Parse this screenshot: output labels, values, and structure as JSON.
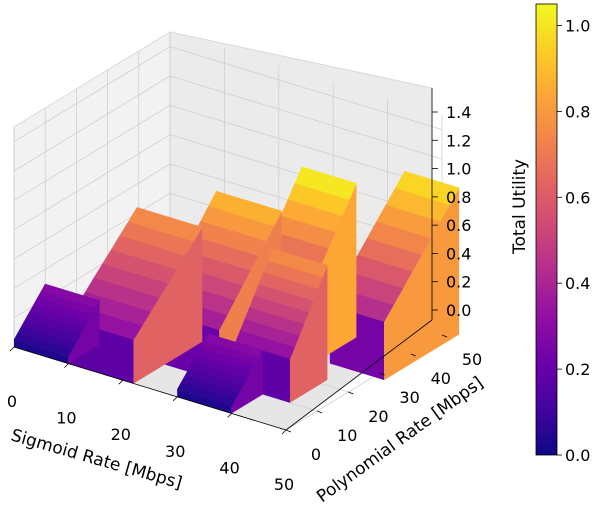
{
  "chart_data": {
    "type": "surface3d",
    "title": "",
    "xlabel": "Sigmoid Rate [Mbps]",
    "ylabel": "Polynomial Rate [Mbps]",
    "zlabel": "Total Utility",
    "xticks": [
      "0",
      "10",
      "20",
      "30",
      "40",
      "50"
    ],
    "yticks": [
      "0",
      "10",
      "20",
      "30",
      "40",
      "50"
    ],
    "zticks": [
      "0.0",
      "0.2",
      "0.4",
      "0.6",
      "0.8",
      "1.0",
      "1.2",
      "1.4"
    ],
    "colorbar_ticks": [
      "0.0",
      "0.2",
      "0.4",
      "0.6",
      "0.8",
      "1.0"
    ],
    "xlim": [
      0,
      50
    ],
    "ylim": [
      0,
      50
    ],
    "zlim": [
      0,
      1.5
    ],
    "colorbar_range": [
      0,
      1.05
    ],
    "colormap": "plasma",
    "grid": true,
    "surface_blocks": [
      {
        "x": [
          0,
          10
        ],
        "y": [
          0,
          10
        ],
        "z_min": 0.05,
        "z_max": 0.3
      },
      {
        "x": [
          10,
          22
        ],
        "y": [
          0,
          22
        ],
        "z_min": 0.3,
        "z_max": 0.78
      },
      {
        "x": [
          20,
          32
        ],
        "y": [
          10,
          30
        ],
        "z_min": 0.35,
        "z_max": 0.9
      },
      {
        "x": [
          30,
          40
        ],
        "y": [
          0,
          10
        ],
        "z_min": 0.05,
        "z_max": 0.3
      },
      {
        "x": [
          35,
          45
        ],
        "y": [
          10,
          22
        ],
        "z_min": 0.3,
        "z_max": 0.78
      },
      {
        "x": [
          30,
          40
        ],
        "y": [
          22,
          40
        ],
        "z_min": 0.4,
        "z_max": 1.05
      },
      {
        "x": [
          42,
          52
        ],
        "y": [
          28,
          52
        ],
        "z_min": 0.4,
        "z_max": 1.0
      }
    ]
  }
}
